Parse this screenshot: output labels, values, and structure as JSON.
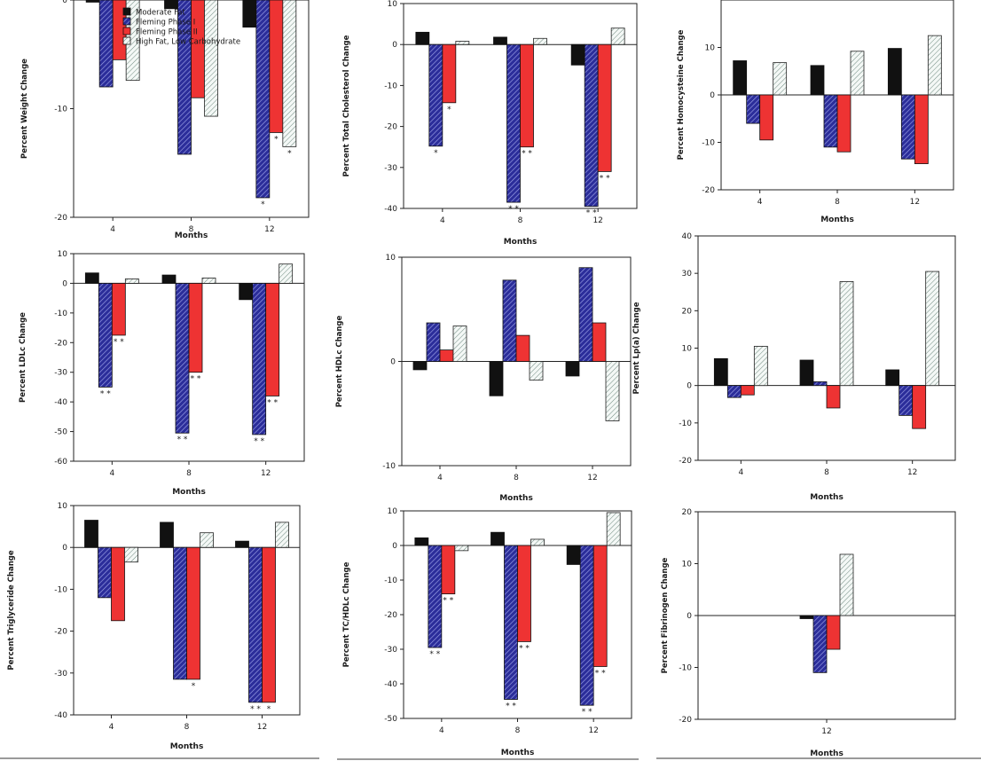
{
  "legend": [
    {
      "name": "Moderate Fat",
      "color": "#111111",
      "pattern": "solid"
    },
    {
      "name": "Fleming Phase I",
      "color": "#2b2d9a",
      "pattern": "hatch"
    },
    {
      "name": "Fleming Phase II",
      "color": "#ee3333",
      "pattern": "solid"
    },
    {
      "name": "High Fat, Low Carbohydrate",
      "color": "#e8f0ec",
      "pattern": "hatch"
    }
  ],
  "chart_data": [
    {
      "type": "bar",
      "ylabel": "Percent Weight Change",
      "xlabel": "Months",
      "categories": [
        "4",
        "8",
        "12"
      ],
      "ylim": [
        -20,
        0
      ],
      "yticks": [
        0,
        -10,
        -20
      ],
      "series": [
        {
          "name": "Moderate Fat",
          "values": [
            -0.2,
            -0.8,
            -2.5
          ]
        },
        {
          "name": "Fleming Phase I",
          "values": [
            -8,
            -14.2,
            -18.2
          ]
        },
        {
          "name": "Fleming Phase II",
          "values": [
            -5.5,
            -9,
            -12.2
          ]
        },
        {
          "name": "High Fat, Low Carbohydrate",
          "values": [
            -7.4,
            -10.7,
            -13.5
          ]
        }
      ],
      "annotations": [
        {
          "cat": 2,
          "series": 1,
          "text": "*"
        },
        {
          "cat": 2,
          "series": 2,
          "text": "*"
        },
        {
          "cat": 2,
          "series": 3,
          "text": "*"
        }
      ]
    },
    {
      "type": "bar",
      "ylabel": "Percent Total Cholesterol Change",
      "xlabel": "Months",
      "categories": [
        "4",
        "8",
        "12"
      ],
      "ylim": [
        -40,
        10
      ],
      "yticks": [
        10,
        0,
        -10,
        -20,
        -30,
        -40
      ],
      "series": [
        {
          "name": "Moderate Fat",
          "values": [
            3,
            1.8,
            -5
          ]
        },
        {
          "name": "Fleming Phase I",
          "values": [
            -24.8,
            -38.5,
            -39.5
          ]
        },
        {
          "name": "Fleming Phase II",
          "values": [
            -14.2,
            -25,
            -31
          ]
        },
        {
          "name": "High Fat, Low Carbohydrate",
          "values": [
            0.8,
            1.5,
            4
          ]
        }
      ],
      "annotations": [
        {
          "cat": 0,
          "series": 1,
          "text": "*"
        },
        {
          "cat": 0,
          "series": 2,
          "text": "*"
        },
        {
          "cat": 1,
          "series": 1,
          "text": "* *"
        },
        {
          "cat": 1,
          "series": 2,
          "text": "* *"
        },
        {
          "cat": 2,
          "series": 1,
          "text": "* *"
        },
        {
          "cat": 2,
          "series": 2,
          "text": "* *"
        }
      ]
    },
    {
      "type": "bar",
      "ylabel": "Percent Homocysteine Change",
      "xlabel": "Months",
      "categories": [
        "4",
        "8",
        "12"
      ],
      "ylim": [
        -20,
        20
      ],
      "yticks": [
        10,
        0,
        -10,
        -20
      ],
      "series": [
        {
          "name": "Moderate Fat",
          "values": [
            7.2,
            6.2,
            9.8
          ]
        },
        {
          "name": "Fleming Phase I",
          "values": [
            -6,
            -11,
            -13.5
          ]
        },
        {
          "name": "Fleming Phase II",
          "values": [
            -9.5,
            -12,
            -14.5
          ]
        },
        {
          "name": "High Fat, Low Carbohydrate",
          "values": [
            6.8,
            9.2,
            12.5
          ]
        }
      ],
      "annotations": []
    },
    {
      "type": "bar",
      "ylabel": "Percent LDLc Change",
      "xlabel": "Months",
      "categories": [
        "4",
        "8",
        "12"
      ],
      "ylim": [
        -60,
        10
      ],
      "yticks": [
        10,
        0,
        -10,
        -20,
        -30,
        -40,
        -50,
        -60
      ],
      "series": [
        {
          "name": "Moderate Fat",
          "values": [
            3.5,
            2.8,
            -5.5
          ]
        },
        {
          "name": "Fleming Phase I",
          "values": [
            -35,
            -50.5,
            -51
          ]
        },
        {
          "name": "Fleming Phase II",
          "values": [
            -17.5,
            -30,
            -38
          ]
        },
        {
          "name": "High Fat, Low Carbohydrate",
          "values": [
            1.5,
            1.8,
            6.5
          ]
        }
      ],
      "annotations": [
        {
          "cat": 0,
          "series": 1,
          "text": "* *"
        },
        {
          "cat": 0,
          "series": 2,
          "text": "* *"
        },
        {
          "cat": 1,
          "series": 1,
          "text": "* *"
        },
        {
          "cat": 1,
          "series": 2,
          "text": "* *"
        },
        {
          "cat": 2,
          "series": 1,
          "text": "* *"
        },
        {
          "cat": 2,
          "series": 2,
          "text": "* *"
        }
      ]
    },
    {
      "type": "bar",
      "ylabel": "Percent HDLc Change",
      "xlabel": "Months",
      "categories": [
        "4",
        "8",
        "12"
      ],
      "ylim": [
        -10,
        10
      ],
      "yticks": [
        10,
        0,
        -10
      ],
      "series": [
        {
          "name": "Moderate Fat",
          "values": [
            -0.8,
            -3.3,
            -1.4
          ]
        },
        {
          "name": "Fleming Phase I",
          "values": [
            3.7,
            7.8,
            9
          ]
        },
        {
          "name": "Fleming Phase II",
          "values": [
            1.1,
            2.5,
            3.7
          ]
        },
        {
          "name": "High Fat, Low Carbohydrate",
          "values": [
            3.4,
            -1.8,
            -5.7
          ]
        }
      ],
      "annotations": []
    },
    {
      "type": "bar",
      "ylabel": "Percent Lp(a) Change",
      "xlabel": "Months",
      "categories": [
        "4",
        "8",
        "12"
      ],
      "ylim": [
        -20,
        40
      ],
      "yticks": [
        40,
        30,
        20,
        10,
        0,
        -10,
        -20
      ],
      "series": [
        {
          "name": "Moderate Fat",
          "values": [
            7.2,
            6.8,
            4.2
          ]
        },
        {
          "name": "Fleming Phase I",
          "values": [
            -3.2,
            1,
            -8
          ]
        },
        {
          "name": "Fleming Phase II",
          "values": [
            -2.5,
            -6,
            -11.5
          ]
        },
        {
          "name": "High Fat, Low Carbohydrate",
          "values": [
            10.5,
            27.8,
            30.5
          ]
        }
      ],
      "annotations": []
    },
    {
      "type": "bar",
      "ylabel": "Percent Triglyceride Change",
      "xlabel": "Months",
      "categories": [
        "4",
        "8",
        "12"
      ],
      "ylim": [
        -40,
        10
      ],
      "yticks": [
        10,
        0,
        -10,
        -20,
        -30,
        -40
      ],
      "series": [
        {
          "name": "Moderate Fat",
          "values": [
            6.5,
            6,
            1.5
          ]
        },
        {
          "name": "Fleming Phase I",
          "values": [
            -12,
            -31.5,
            -37
          ]
        },
        {
          "name": "Fleming Phase II",
          "values": [
            -17.5,
            -31.5,
            -37
          ]
        },
        {
          "name": "High Fat, Low Carbohydrate",
          "values": [
            -3.5,
            3.5,
            6
          ]
        }
      ],
      "annotations": [
        {
          "cat": 1,
          "series": 2,
          "text": "*"
        },
        {
          "cat": 2,
          "series": 1,
          "text": "* *"
        },
        {
          "cat": 2,
          "series": 2,
          "text": "*"
        }
      ]
    },
    {
      "type": "bar",
      "ylabel": "Percent TC/HDLc Change",
      "xlabel": "Months",
      "categories": [
        "4",
        "8",
        "12"
      ],
      "ylim": [
        -50,
        10
      ],
      "yticks": [
        10,
        0,
        -10,
        -20,
        -30,
        -40,
        -50
      ],
      "series": [
        {
          "name": "Moderate Fat",
          "values": [
            2.2,
            3.8,
            -5.5
          ]
        },
        {
          "name": "Fleming Phase I",
          "values": [
            -29.5,
            -44.5,
            -46.2
          ]
        },
        {
          "name": "Fleming Phase II",
          "values": [
            -14,
            -27.8,
            -35
          ]
        },
        {
          "name": "High Fat, Low Carbohydrate",
          "values": [
            -1.5,
            1.8,
            9.5
          ]
        }
      ],
      "annotations": [
        {
          "cat": 0,
          "series": 1,
          "text": "* *"
        },
        {
          "cat": 0,
          "series": 2,
          "text": "* *"
        },
        {
          "cat": 1,
          "series": 1,
          "text": "* *"
        },
        {
          "cat": 1,
          "series": 2,
          "text": "* *"
        },
        {
          "cat": 2,
          "series": 1,
          "text": "* *"
        },
        {
          "cat": 2,
          "series": 2,
          "text": "* *"
        }
      ]
    },
    {
      "type": "bar",
      "ylabel": "Percent Fibrinogen Change",
      "xlabel": "Months",
      "categories": [
        "12"
      ],
      "ylim": [
        -20,
        20
      ],
      "yticks": [
        20,
        10,
        0,
        -10,
        -20
      ],
      "series": [
        {
          "name": "Moderate Fat",
          "values": [
            -0.6
          ]
        },
        {
          "name": "Fleming Phase I",
          "values": [
            -11
          ]
        },
        {
          "name": "Fleming Phase II",
          "values": [
            -6.5
          ]
        },
        {
          "name": "High Fat, Low Carbohydrate",
          "values": [
            11.8
          ]
        }
      ],
      "annotations": []
    }
  ]
}
